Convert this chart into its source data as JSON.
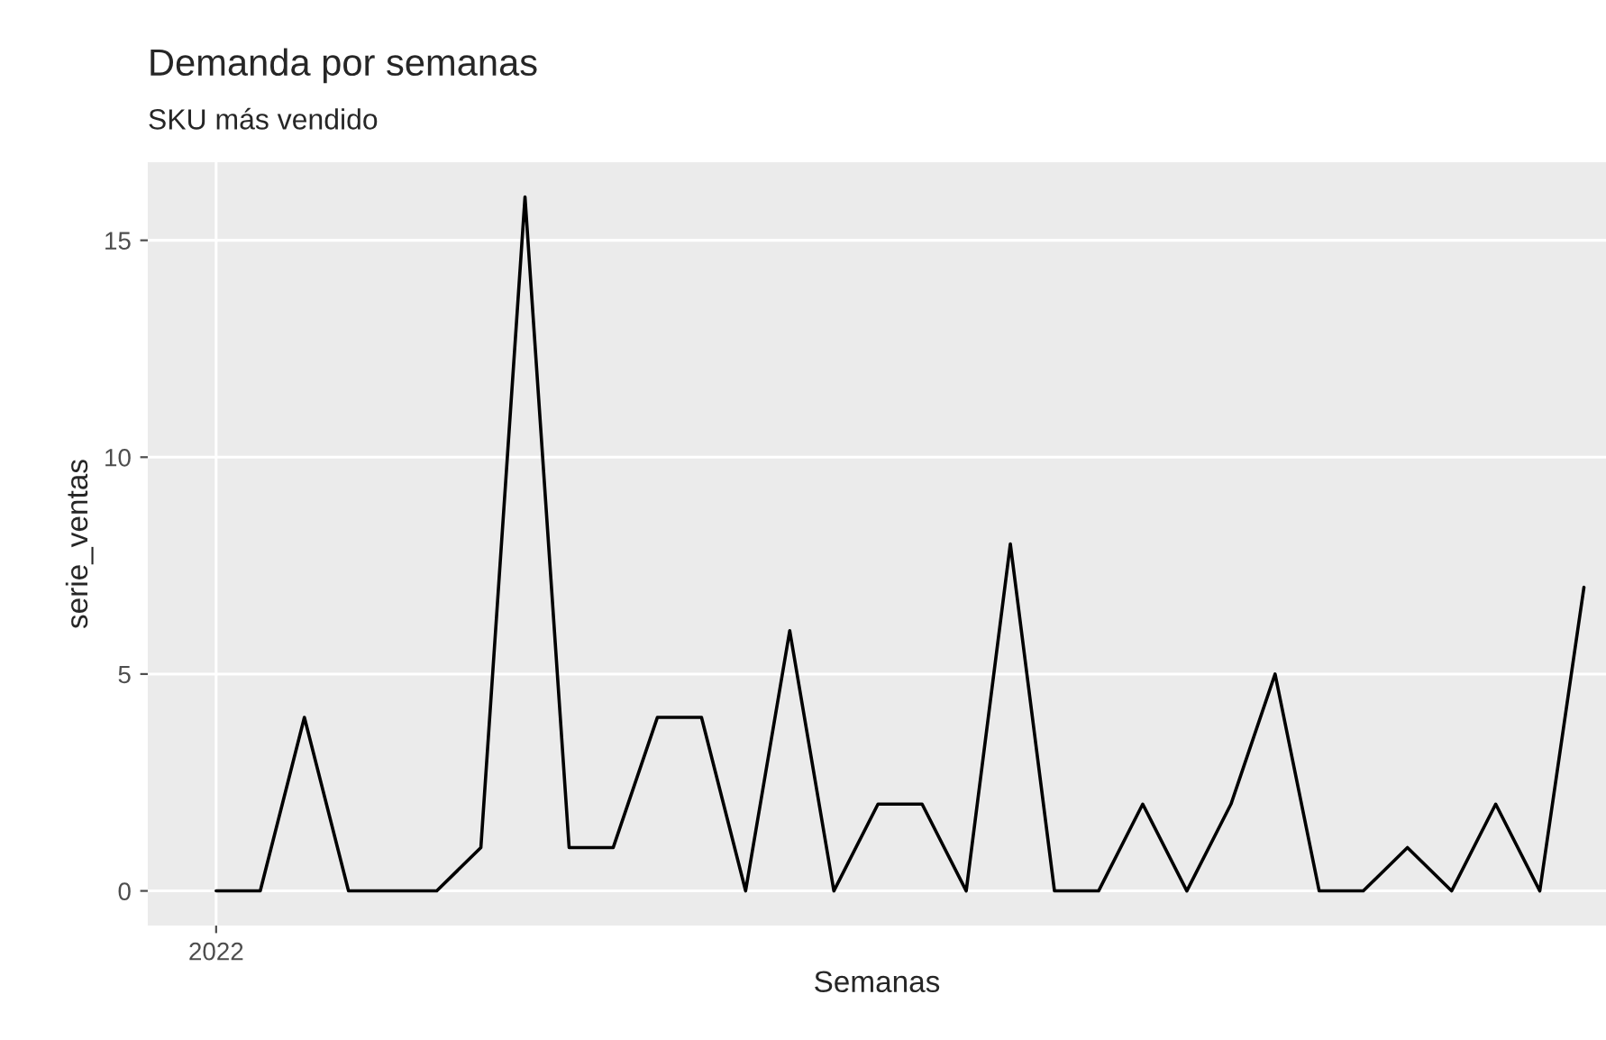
{
  "chart_data": {
    "type": "line",
    "title": "Demanda por semanas",
    "subtitle": "SKU más vendido",
    "xlabel": "Semanas",
    "ylabel": "serie_ventas",
    "categories": [
      null,
      null,
      null,
      null,
      null,
      null,
      null,
      null,
      null,
      null,
      null,
      null,
      null,
      null,
      null,
      null,
      null,
      null,
      null,
      null,
      null,
      null,
      null,
      null,
      null,
      null,
      null,
      null,
      null,
      null,
      null,
      null
    ],
    "annotations": [
      "2022"
    ],
    "series": [
      {
        "color": "#000000",
        "values": [
          0,
          0,
          4,
          0,
          0,
          0,
          1,
          16,
          1,
          1,
          4,
          4,
          0,
          6,
          0,
          2,
          2,
          0,
          8,
          0,
          0,
          2,
          0,
          2,
          5,
          0,
          0,
          1,
          0,
          2,
          0,
          7
        ]
      }
    ],
    "ylim": [
      -0.8,
      16.8
    ],
    "yticks": [
      0,
      5,
      10,
      15
    ],
    "grid": true,
    "marker": "none",
    "line_style": "solid"
  }
}
